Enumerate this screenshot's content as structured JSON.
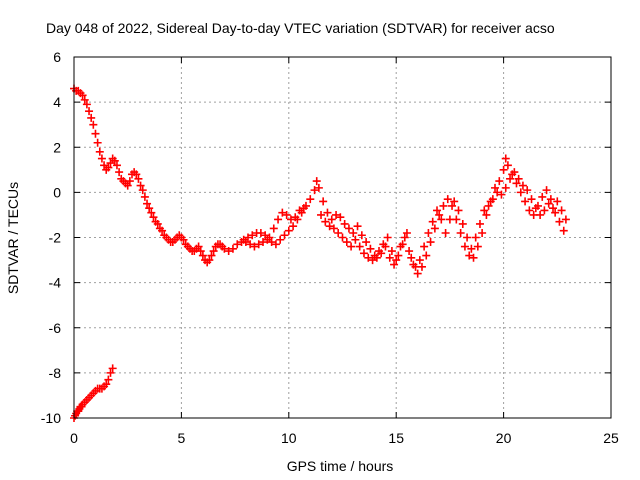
{
  "chart_data": {
    "type": "scatter",
    "title": "Day 048 of 2022, Sidereal Day-to-day VTEC variation (SDTVAR) for receiver acso",
    "xlabel": "GPS time / hours",
    "ylabel": "SDTVAR / TECUs",
    "xlim": [
      0,
      25
    ],
    "ylim": [
      -10,
      6
    ],
    "xticks": [
      0,
      5,
      10,
      15,
      20,
      25
    ],
    "yticks": [
      -10,
      -8,
      -6,
      -4,
      -2,
      0,
      2,
      4,
      6
    ],
    "xtick_labels": [
      "0",
      "5",
      "10",
      "15",
      "20",
      "25"
    ],
    "ytick_labels": [
      "-10",
      "-8",
      "-6",
      "-4",
      "-2",
      "0",
      "2",
      "4",
      "6"
    ],
    "grid": true,
    "marker": "+",
    "color": "#ff0000",
    "series": [
      {
        "name": "SDTVAR main",
        "points": [
          [
            0.0,
            4.6
          ],
          [
            0.1,
            4.5
          ],
          [
            0.2,
            4.5
          ],
          [
            0.3,
            4.4
          ],
          [
            0.4,
            4.3
          ],
          [
            0.5,
            4.1
          ],
          [
            0.6,
            3.9
          ],
          [
            0.7,
            3.6
          ],
          [
            0.8,
            3.3
          ],
          [
            0.9,
            3.0
          ],
          [
            1.0,
            2.6
          ],
          [
            1.1,
            2.2
          ],
          [
            1.2,
            1.8
          ],
          [
            1.3,
            1.5
          ],
          [
            1.4,
            1.2
          ],
          [
            1.5,
            1.0
          ],
          [
            1.6,
            1.1
          ],
          [
            1.7,
            1.3
          ],
          [
            1.8,
            1.5
          ],
          [
            1.9,
            1.4
          ],
          [
            2.0,
            1.2
          ],
          [
            2.1,
            0.9
          ],
          [
            2.2,
            0.6
          ],
          [
            2.3,
            0.5
          ],
          [
            2.4,
            0.4
          ],
          [
            2.5,
            0.3
          ],
          [
            2.6,
            0.5
          ],
          [
            2.7,
            0.8
          ],
          [
            2.8,
            0.9
          ],
          [
            2.9,
            0.8
          ],
          [
            3.0,
            0.6
          ],
          [
            3.1,
            0.3
          ],
          [
            3.2,
            0.1
          ],
          [
            3.3,
            -0.2
          ],
          [
            3.4,
            -0.5
          ],
          [
            3.5,
            -0.7
          ],
          [
            3.6,
            -0.9
          ],
          [
            3.7,
            -1.1
          ],
          [
            3.8,
            -1.3
          ],
          [
            3.9,
            -1.4
          ],
          [
            4.0,
            -1.6
          ],
          [
            4.1,
            -1.7
          ],
          [
            4.2,
            -1.9
          ],
          [
            4.3,
            -2.0
          ],
          [
            4.4,
            -2.1
          ],
          [
            4.5,
            -2.2
          ],
          [
            4.6,
            -2.2
          ],
          [
            4.7,
            -2.1
          ],
          [
            4.8,
            -2.0
          ],
          [
            4.9,
            -1.9
          ],
          [
            5.0,
            -2.0
          ],
          [
            5.1,
            -2.1
          ],
          [
            5.2,
            -2.3
          ],
          [
            5.3,
            -2.4
          ],
          [
            5.4,
            -2.5
          ],
          [
            5.5,
            -2.6
          ],
          [
            5.6,
            -2.6
          ],
          [
            5.7,
            -2.5
          ],
          [
            5.8,
            -2.4
          ],
          [
            5.9,
            -2.6
          ],
          [
            6.0,
            -2.8
          ],
          [
            6.1,
            -3.0
          ],
          [
            6.2,
            -3.1
          ],
          [
            6.3,
            -3.0
          ],
          [
            6.4,
            -2.8
          ],
          [
            6.5,
            -2.6
          ],
          [
            6.6,
            -2.4
          ],
          [
            6.7,
            -2.3
          ],
          [
            6.8,
            -2.3
          ],
          [
            6.9,
            -2.4
          ],
          [
            7.0,
            -2.5
          ],
          [
            7.2,
            -2.6
          ],
          [
            7.4,
            -2.5
          ],
          [
            7.6,
            -2.3
          ],
          [
            7.8,
            -2.2
          ],
          [
            8.0,
            -2.2
          ],
          [
            8.2,
            -2.3
          ],
          [
            8.4,
            -2.4
          ],
          [
            8.6,
            -2.3
          ],
          [
            8.8,
            -2.2
          ],
          [
            9.0,
            -2.1
          ],
          [
            9.2,
            -2.2
          ],
          [
            9.4,
            -2.3
          ],
          [
            9.6,
            -2.1
          ],
          [
            9.8,
            -1.9
          ],
          [
            10.0,
            -1.7
          ],
          [
            10.2,
            -1.5
          ],
          [
            10.4,
            -1.2
          ],
          [
            10.6,
            -0.9
          ],
          [
            10.8,
            -0.6
          ],
          [
            11.0,
            -0.3
          ],
          [
            11.2,
            0.1
          ],
          [
            11.3,
            0.5
          ],
          [
            11.4,
            0.2
          ],
          [
            11.6,
            -0.4
          ],
          [
            11.8,
            -0.9
          ],
          [
            12.0,
            -1.2
          ],
          [
            12.2,
            -1.0
          ],
          [
            12.4,
            -1.1
          ],
          [
            12.6,
            -1.4
          ],
          [
            12.8,
            -1.6
          ],
          [
            13.0,
            -1.8
          ],
          [
            13.2,
            -1.5
          ],
          [
            13.4,
            -1.9
          ],
          [
            13.6,
            -2.2
          ],
          [
            13.8,
            -2.5
          ],
          [
            14.0,
            -2.8
          ],
          [
            14.2,
            -2.6
          ],
          [
            14.4,
            -2.3
          ],
          [
            14.6,
            -2.0
          ],
          [
            14.8,
            -2.6
          ],
          [
            15.0,
            -3.0
          ],
          [
            15.2,
            -2.4
          ],
          [
            15.4,
            -2.0
          ],
          [
            15.6,
            -2.6
          ],
          [
            15.8,
            -3.2
          ],
          [
            16.0,
            -3.6
          ],
          [
            16.2,
            -3.3
          ],
          [
            16.4,
            -2.8
          ],
          [
            16.6,
            -2.2
          ],
          [
            16.8,
            -1.6
          ],
          [
            17.0,
            -1.0
          ],
          [
            17.2,
            -0.6
          ],
          [
            17.4,
            -0.3
          ],
          [
            17.6,
            -0.6
          ],
          [
            17.8,
            -1.2
          ],
          [
            18.0,
            -1.8
          ],
          [
            18.2,
            -2.4
          ],
          [
            18.4,
            -2.8
          ],
          [
            18.6,
            -2.9
          ],
          [
            18.8,
            -2.4
          ],
          [
            19.0,
            -1.8
          ],
          [
            19.2,
            -1.0
          ],
          [
            19.4,
            -0.4
          ],
          [
            19.6,
            0.2
          ],
          [
            19.8,
            0.5
          ],
          [
            20.0,
            1.0
          ],
          [
            20.1,
            1.5
          ],
          [
            20.2,
            1.2
          ],
          [
            20.4,
            0.8
          ],
          [
            20.6,
            0.4
          ],
          [
            20.8,
            0.0
          ],
          [
            21.0,
            -0.4
          ],
          [
            21.2,
            -0.8
          ],
          [
            21.4,
            -1.0
          ],
          [
            21.6,
            -0.6
          ],
          [
            21.8,
            -0.2
          ],
          [
            22.0,
            0.1
          ],
          [
            22.2,
            -0.3
          ],
          [
            22.4,
            -0.9
          ],
          [
            22.6,
            -1.3
          ],
          [
            22.8,
            -1.7
          ]
        ]
      },
      {
        "name": "SDTVAR secondary branch",
        "points": [
          [
            7.9,
            -2.1
          ],
          [
            8.1,
            -2.0
          ],
          [
            8.3,
            -1.9
          ],
          [
            8.5,
            -1.8
          ],
          [
            8.7,
            -1.8
          ],
          [
            8.9,
            -1.9
          ],
          [
            9.1,
            -2.0
          ],
          [
            9.3,
            -1.6
          ],
          [
            9.5,
            -1.2
          ],
          [
            9.7,
            -0.9
          ],
          [
            9.9,
            -1.0
          ],
          [
            10.1,
            -1.2
          ],
          [
            10.3,
            -1.1
          ],
          [
            10.5,
            -0.8
          ],
          [
            10.7,
            -0.7
          ],
          [
            11.5,
            -1.0
          ],
          [
            11.7,
            -1.3
          ],
          [
            11.9,
            -1.5
          ],
          [
            12.1,
            -1.6
          ],
          [
            12.3,
            -1.8
          ],
          [
            12.5,
            -2.0
          ],
          [
            12.7,
            -2.2
          ],
          [
            12.9,
            -2.4
          ],
          [
            13.1,
            -2.1
          ],
          [
            13.3,
            -2.4
          ],
          [
            13.5,
            -2.7
          ],
          [
            13.7,
            -2.9
          ],
          [
            13.9,
            -3.0
          ],
          [
            14.1,
            -2.9
          ],
          [
            14.3,
            -2.7
          ],
          [
            14.5,
            -2.4
          ],
          [
            14.7,
            -2.9
          ],
          [
            14.9,
            -3.2
          ],
          [
            15.1,
            -2.8
          ],
          [
            15.3,
            -2.3
          ],
          [
            15.5,
            -1.8
          ],
          [
            15.7,
            -2.9
          ],
          [
            15.9,
            -3.3
          ],
          [
            16.1,
            -3.0
          ],
          [
            16.3,
            -2.4
          ],
          [
            16.5,
            -1.8
          ],
          [
            16.7,
            -1.3
          ],
          [
            16.9,
            -0.8
          ],
          [
            17.1,
            -1.2
          ],
          [
            17.3,
            -1.8
          ],
          [
            17.5,
            -1.2
          ],
          [
            17.7,
            -0.4
          ],
          [
            17.9,
            -0.8
          ],
          [
            18.1,
            -1.4
          ],
          [
            18.3,
            -2.0
          ],
          [
            18.5,
            -2.5
          ],
          [
            18.7,
            -2.0
          ],
          [
            18.9,
            -1.4
          ],
          [
            19.1,
            -0.8
          ],
          [
            19.3,
            -0.6
          ],
          [
            19.5,
            -0.3
          ],
          [
            19.7,
            0.0
          ],
          [
            19.9,
            -0.1
          ],
          [
            20.1,
            0.2
          ],
          [
            20.3,
            0.6
          ],
          [
            20.5,
            0.9
          ],
          [
            20.7,
            0.6
          ],
          [
            20.9,
            0.3
          ],
          [
            21.1,
            0.1
          ],
          [
            21.3,
            -0.3
          ],
          [
            21.5,
            -0.7
          ],
          [
            21.7,
            -1.0
          ],
          [
            21.9,
            -0.8
          ],
          [
            22.1,
            -0.5
          ],
          [
            22.3,
            -0.7
          ],
          [
            22.5,
            -0.4
          ],
          [
            22.7,
            -0.8
          ],
          [
            22.9,
            -1.2
          ]
        ]
      },
      {
        "name": "SDTVAR lower segment",
        "points": [
          [
            0.0,
            -10.0
          ],
          [
            0.05,
            -9.9
          ],
          [
            0.1,
            -9.8
          ],
          [
            0.15,
            -9.7
          ],
          [
            0.2,
            -9.7
          ],
          [
            0.25,
            -9.6
          ],
          [
            0.3,
            -9.5
          ],
          [
            0.35,
            -9.5
          ],
          [
            0.4,
            -9.4
          ],
          [
            0.5,
            -9.3
          ],
          [
            0.6,
            -9.2
          ],
          [
            0.7,
            -9.1
          ],
          [
            0.8,
            -9.0
          ],
          [
            0.9,
            -8.9
          ],
          [
            1.0,
            -8.8
          ],
          [
            1.1,
            -8.7
          ],
          [
            1.2,
            -8.7
          ],
          [
            1.3,
            -8.7
          ],
          [
            1.4,
            -8.6
          ],
          [
            1.5,
            -8.5
          ],
          [
            1.6,
            -8.3
          ],
          [
            1.7,
            -8.0
          ],
          [
            1.8,
            -7.8
          ]
        ]
      }
    ]
  }
}
